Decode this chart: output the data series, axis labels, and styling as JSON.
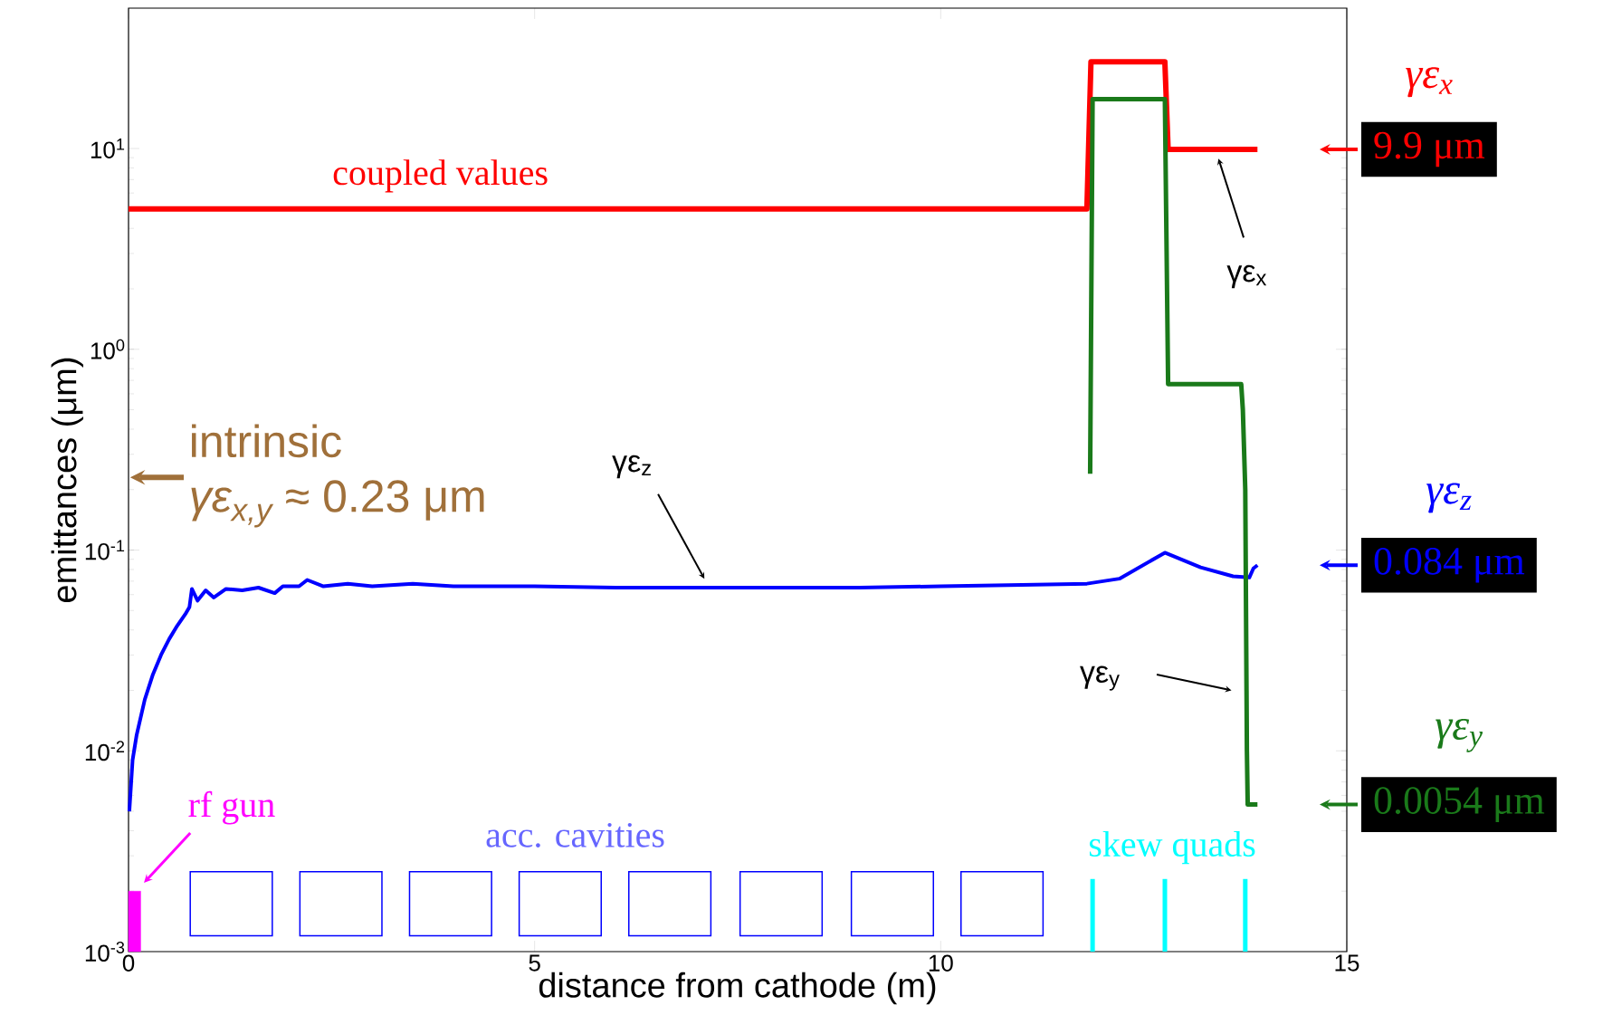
{
  "chart_data": {
    "type": "line",
    "xlabel": "distance from cathode (m)",
    "ylabel": "emittances (μm)",
    "xlim": [
      0,
      15
    ],
    "ylim": [
      0.001,
      50
    ],
    "log": "y",
    "xticks": [
      0,
      5,
      10,
      15
    ],
    "yticks": [
      {
        "value": 0.001,
        "label": "10$^{-3}$"
      },
      {
        "value": 0.01,
        "label": "10$^{-2}$"
      },
      {
        "value": 0.1,
        "label": "10$^{-1}$"
      },
      {
        "value": 1,
        "label": "10$^{0}$"
      },
      {
        "value": 10,
        "label": "10$^{1}$"
      }
    ],
    "series": [
      {
        "name": "γε$_{x}$",
        "color": "#ff0000",
        "x": [
          0,
          11.8,
          11.85,
          12.76,
          12.8,
          13.9
        ],
        "values": [
          5,
          5,
          27,
          27,
          9.9,
          9.9
        ]
      },
      {
        "name": "γε$_{z}$",
        "color": "#0000ff",
        "x": [
          0.01,
          0.05,
          0.1,
          0.2,
          0.3,
          0.4,
          0.5,
          0.6,
          0.7,
          0.75,
          0.78,
          0.85,
          0.95,
          1.05,
          1.2,
          1.4,
          1.6,
          1.8,
          1.9,
          2.1,
          2.2,
          2.4,
          2.7,
          3.0,
          3.5,
          4,
          5,
          6,
          7,
          8,
          9,
          10,
          11,
          11.8,
          12.2,
          12.76,
          13.2,
          13.6,
          13.8,
          13.85,
          13.9
        ],
        "values": [
          0.005,
          0.009,
          0.012,
          0.018,
          0.024,
          0.03,
          0.036,
          0.042,
          0.048,
          0.052,
          0.064,
          0.056,
          0.063,
          0.058,
          0.064,
          0.063,
          0.065,
          0.061,
          0.066,
          0.066,
          0.071,
          0.066,
          0.068,
          0.066,
          0.068,
          0.066,
          0.066,
          0.065,
          0.065,
          0.065,
          0.065,
          0.066,
          0.067,
          0.068,
          0.072,
          0.097,
          0.082,
          0.074,
          0.073,
          0.081,
          0.084
        ]
      },
      {
        "name": "γε$_{y}$",
        "color": "#1a7a1a",
        "x": [
          11.84,
          11.87,
          12.76,
          12.8,
          13.7,
          13.72,
          13.75,
          13.77,
          13.78,
          13.9
        ],
        "values": [
          0.24,
          17.6,
          17.6,
          0.67,
          0.67,
          0.5,
          0.2,
          0.01,
          0.0054,
          0.0054
        ]
      }
    ],
    "bands": [
      {
        "axis": "x",
        "from": 0,
        "to": 0.15,
        "color": "#ff00ff"
      }
    ],
    "annotations": [
      "coupled values",
      "γε$_{x}$",
      "γε$_{z}$",
      "γε$_{y}$",
      "intrinsic",
      "*γε$_{x,y}$* ≈ 0.23 μm",
      "rf gun",
      "acc. cavities",
      "skew quads",
      "9.9 μm",
      "0.084 μm",
      "0.0054 μm"
    ]
  }
}
